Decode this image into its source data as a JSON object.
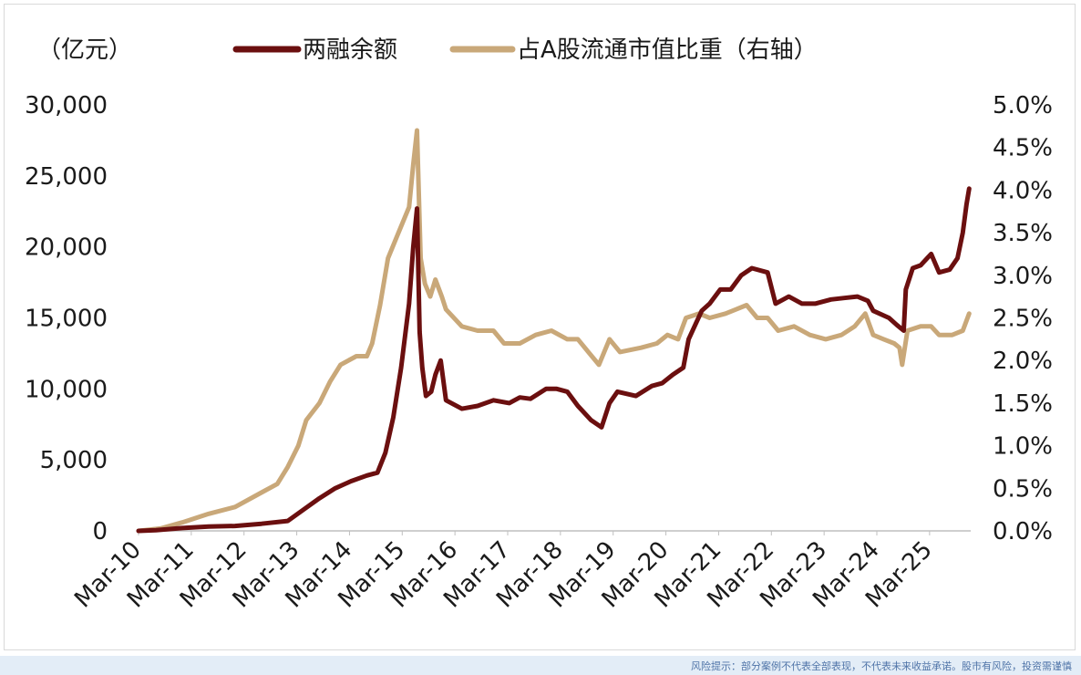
{
  "chart_data": {
    "type": "line",
    "title": "",
    "ylabel": "（亿元）",
    "y2label": "",
    "ylim": [
      0,
      30000
    ],
    "y2lim": [
      0.0,
      5.0
    ],
    "yticks": [
      "0",
      "5,000",
      "10,000",
      "15,000",
      "20,000",
      "25,000",
      "30,000"
    ],
    "y2ticks": [
      "0.0%",
      "0.5%",
      "1.0%",
      "1.5%",
      "2.0%",
      "2.5%",
      "3.0%",
      "3.5%",
      "4.0%",
      "4.5%",
      "5.0%"
    ],
    "x_range": [
      2010.17,
      2025.95
    ],
    "xticks": [
      {
        "label": "Mar-10",
        "t": 2010.17
      },
      {
        "label": "Mar-11",
        "t": 2011.17
      },
      {
        "label": "Mar-12",
        "t": 2012.17
      },
      {
        "label": "Mar-13",
        "t": 2013.17
      },
      {
        "label": "Mar-14",
        "t": 2014.17
      },
      {
        "label": "Mar-15",
        "t": 2015.17
      },
      {
        "label": "Mar-16",
        "t": 2016.17
      },
      {
        "label": "Mar-17",
        "t": 2017.17
      },
      {
        "label": "Mar-18",
        "t": 2018.17
      },
      {
        "label": "Mar-19",
        "t": 2019.17
      },
      {
        "label": "Mar-20",
        "t": 2020.17
      },
      {
        "label": "Mar-21",
        "t": 2021.17
      },
      {
        "label": "Mar-22",
        "t": 2022.17
      },
      {
        "label": "Mar-23",
        "t": 2023.17
      },
      {
        "label": "Mar-24",
        "t": 2024.17
      },
      {
        "label": "Mar-25",
        "t": 2025.17
      }
    ],
    "series": [
      {
        "name": "两融余额",
        "axis": "left",
        "color": "#6b0f0f",
        "points": [
          [
            2010.17,
            0
          ],
          [
            2010.5,
            50
          ],
          [
            2011.0,
            200
          ],
          [
            2011.5,
            300
          ],
          [
            2012.0,
            350
          ],
          [
            2012.5,
            500
          ],
          [
            2013.0,
            700
          ],
          [
            2013.3,
            1500
          ],
          [
            2013.6,
            2300
          ],
          [
            2013.9,
            3000
          ],
          [
            2014.2,
            3500
          ],
          [
            2014.5,
            3900
          ],
          [
            2014.7,
            4100
          ],
          [
            2014.85,
            5500
          ],
          [
            2015.0,
            8000
          ],
          [
            2015.15,
            11500
          ],
          [
            2015.3,
            16000
          ],
          [
            2015.38,
            20000
          ],
          [
            2015.45,
            22700
          ],
          [
            2015.5,
            14000
          ],
          [
            2015.55,
            11500
          ],
          [
            2015.62,
            9500
          ],
          [
            2015.72,
            9800
          ],
          [
            2015.8,
            11000
          ],
          [
            2015.9,
            12000
          ],
          [
            2016.0,
            9200
          ],
          [
            2016.3,
            8600
          ],
          [
            2016.6,
            8800
          ],
          [
            2016.9,
            9200
          ],
          [
            2017.2,
            9000
          ],
          [
            2017.4,
            9400
          ],
          [
            2017.6,
            9300
          ],
          [
            2017.9,
            10000
          ],
          [
            2018.1,
            10000
          ],
          [
            2018.3,
            9800
          ],
          [
            2018.5,
            8800
          ],
          [
            2018.75,
            7800
          ],
          [
            2018.95,
            7300
          ],
          [
            2019.1,
            9000
          ],
          [
            2019.25,
            9800
          ],
          [
            2019.6,
            9500
          ],
          [
            2019.9,
            10200
          ],
          [
            2020.1,
            10400
          ],
          [
            2020.3,
            11000
          ],
          [
            2020.5,
            11500
          ],
          [
            2020.6,
            13500
          ],
          [
            2020.85,
            15500
          ],
          [
            2021.0,
            16000
          ],
          [
            2021.2,
            17000
          ],
          [
            2021.4,
            17000
          ],
          [
            2021.6,
            18000
          ],
          [
            2021.8,
            18500
          ],
          [
            2022.1,
            18200
          ],
          [
            2022.25,
            16000
          ],
          [
            2022.5,
            16500
          ],
          [
            2022.75,
            16000
          ],
          [
            2023.0,
            16000
          ],
          [
            2023.3,
            16300
          ],
          [
            2023.55,
            16400
          ],
          [
            2023.8,
            16500
          ],
          [
            2024.0,
            16200
          ],
          [
            2024.1,
            15500
          ],
          [
            2024.4,
            15000
          ],
          [
            2024.55,
            14500
          ],
          [
            2024.68,
            14100
          ],
          [
            2024.72,
            17000
          ],
          [
            2024.85,
            18500
          ],
          [
            2025.0,
            18700
          ],
          [
            2025.2,
            19500
          ],
          [
            2025.35,
            18200
          ],
          [
            2025.55,
            18400
          ],
          [
            2025.7,
            19200
          ],
          [
            2025.8,
            21000
          ],
          [
            2025.87,
            23000
          ],
          [
            2025.92,
            24100
          ]
        ]
      },
      {
        "name": "占A股流通市值比重（右轴）",
        "axis": "right",
        "color": "#c9a879",
        "points": [
          [
            2010.17,
            0.0
          ],
          [
            2010.6,
            0.03
          ],
          [
            2011.0,
            0.1
          ],
          [
            2011.5,
            0.2
          ],
          [
            2012.0,
            0.28
          ],
          [
            2012.5,
            0.45
          ],
          [
            2012.8,
            0.55
          ],
          [
            2013.0,
            0.75
          ],
          [
            2013.2,
            1.0
          ],
          [
            2013.35,
            1.3
          ],
          [
            2013.6,
            1.5
          ],
          [
            2013.8,
            1.75
          ],
          [
            2014.0,
            1.95
          ],
          [
            2014.3,
            2.05
          ],
          [
            2014.5,
            2.05
          ],
          [
            2014.6,
            2.2
          ],
          [
            2014.75,
            2.65
          ],
          [
            2014.9,
            3.2
          ],
          [
            2015.1,
            3.5
          ],
          [
            2015.3,
            3.8
          ],
          [
            2015.38,
            4.3
          ],
          [
            2015.45,
            4.7
          ],
          [
            2015.52,
            3.2
          ],
          [
            2015.6,
            2.9
          ],
          [
            2015.7,
            2.75
          ],
          [
            2015.8,
            2.95
          ],
          [
            2015.92,
            2.75
          ],
          [
            2016.0,
            2.6
          ],
          [
            2016.3,
            2.4
          ],
          [
            2016.6,
            2.35
          ],
          [
            2016.9,
            2.35
          ],
          [
            2017.1,
            2.2
          ],
          [
            2017.4,
            2.2
          ],
          [
            2017.7,
            2.3
          ],
          [
            2018.0,
            2.35
          ],
          [
            2018.3,
            2.25
          ],
          [
            2018.5,
            2.25
          ],
          [
            2018.7,
            2.1
          ],
          [
            2018.9,
            1.95
          ],
          [
            2019.1,
            2.25
          ],
          [
            2019.3,
            2.1
          ],
          [
            2019.7,
            2.15
          ],
          [
            2020.0,
            2.2
          ],
          [
            2020.2,
            2.3
          ],
          [
            2020.4,
            2.25
          ],
          [
            2020.55,
            2.5
          ],
          [
            2020.8,
            2.55
          ],
          [
            2021.0,
            2.5
          ],
          [
            2021.3,
            2.55
          ],
          [
            2021.5,
            2.6
          ],
          [
            2021.7,
            2.65
          ],
          [
            2021.9,
            2.5
          ],
          [
            2022.1,
            2.5
          ],
          [
            2022.3,
            2.35
          ],
          [
            2022.6,
            2.4
          ],
          [
            2022.9,
            2.3
          ],
          [
            2023.2,
            2.25
          ],
          [
            2023.5,
            2.3
          ],
          [
            2023.75,
            2.4
          ],
          [
            2023.95,
            2.55
          ],
          [
            2024.1,
            2.3
          ],
          [
            2024.3,
            2.25
          ],
          [
            2024.5,
            2.2
          ],
          [
            2024.6,
            2.15
          ],
          [
            2024.65,
            1.95
          ],
          [
            2024.75,
            2.35
          ],
          [
            2025.0,
            2.4
          ],
          [
            2025.2,
            2.4
          ],
          [
            2025.35,
            2.3
          ],
          [
            2025.6,
            2.3
          ],
          [
            2025.8,
            2.35
          ],
          [
            2025.92,
            2.55
          ]
        ]
      }
    ],
    "legend": [
      {
        "label": "两融余额",
        "color": "#6b0f0f"
      },
      {
        "label": "占A股流通市值比重（右轴）",
        "color": "#c9a879"
      }
    ],
    "legend_position": "top",
    "grid": false
  },
  "footer": {
    "disclaimer": "风险提示：部分案例不代表全部表现，不代表未来收益承诺。股市有风险，投资需谨慎"
  }
}
